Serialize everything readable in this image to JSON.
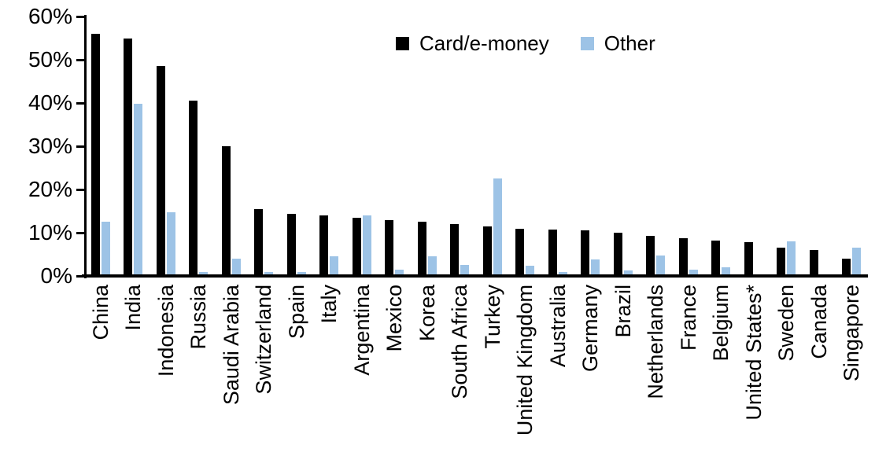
{
  "chart_data": {
    "type": "bar",
    "title": "",
    "xlabel": "",
    "ylabel": "",
    "ylim": [
      0,
      60
    ],
    "ytick_step": 10,
    "ytick_labels": [
      "0%",
      "10%",
      "20%",
      "30%",
      "40%",
      "50%",
      "60%"
    ],
    "grid": false,
    "legend_position": "top-center",
    "categories": [
      "China",
      "India",
      "Indonesia",
      "Russia",
      "Saudi Arabia",
      "Switzerland",
      "Spain",
      "Italy",
      "Argentina",
      "Mexico",
      "Korea",
      "South Africa",
      "Turkey",
      "United Kingdom",
      "Australia",
      "Germany",
      "Brazil",
      "Netherlands",
      "France",
      "Belgium",
      "United States*",
      "Sweden",
      "Canada",
      "Singapore"
    ],
    "series": [
      {
        "name": "Card/e-money",
        "color": "#000000",
        "values": [
          56,
          55,
          48.5,
          40.5,
          30,
          15.5,
          14.3,
          14,
          13.5,
          13,
          12.5,
          12,
          11.5,
          11,
          10.7,
          10.5,
          10,
          9.2,
          8.7,
          8.2,
          7.9,
          6.5,
          6,
          4
        ]
      },
      {
        "name": "Other",
        "color": "#9DC3E6",
        "values": [
          12.5,
          39.8,
          14.7,
          1,
          4,
          1,
          1,
          4.5,
          14,
          1.5,
          4.6,
          2.5,
          22.6,
          2.4,
          1,
          3.9,
          1.2,
          4.8,
          1.5,
          2,
          0.3,
          8,
          0,
          6.6
        ]
      }
    ]
  }
}
